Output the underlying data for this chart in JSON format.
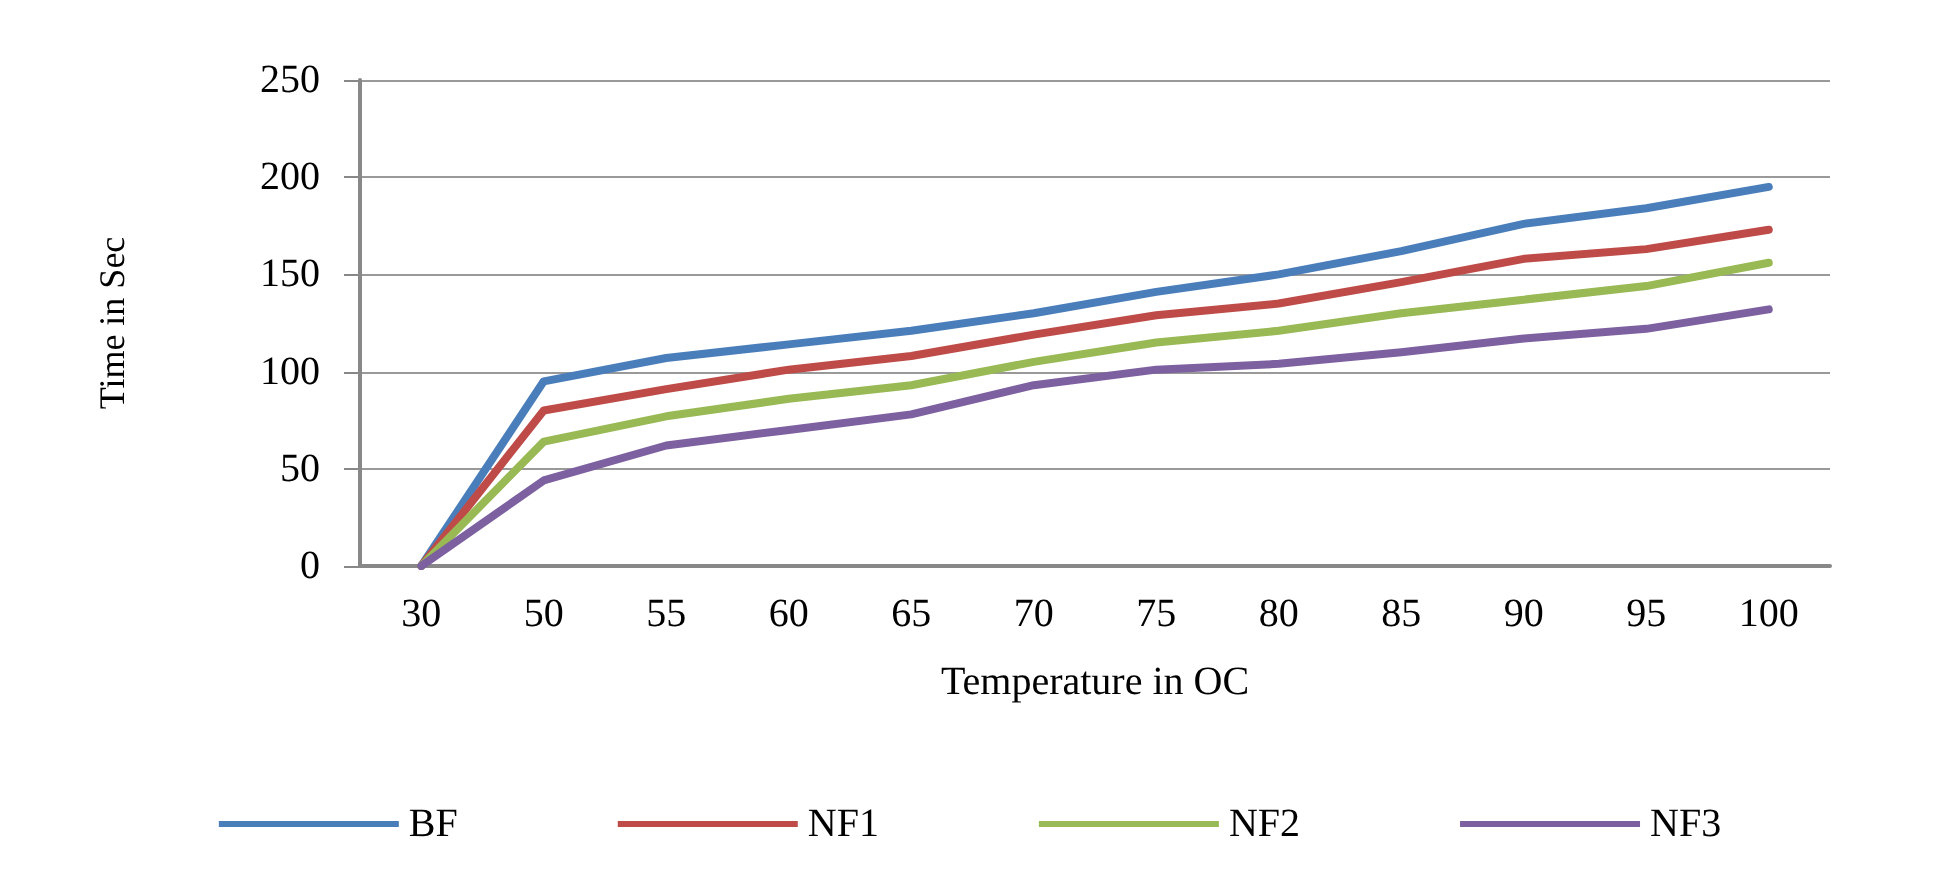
{
  "chart_data": {
    "type": "line",
    "xlabel": "Temperature in OC",
    "ylabel": "Time in Sec",
    "categories": [
      "30",
      "50",
      "55",
      "60",
      "65",
      "70",
      "75",
      "80",
      "85",
      "90",
      "95",
      "100"
    ],
    "series": [
      {
        "name": "BF",
        "color": "#4a7ebb",
        "values": [
          0,
          95,
          107,
          114,
          121,
          130,
          141,
          150,
          162,
          176,
          184,
          195
        ]
      },
      {
        "name": "NF1",
        "color": "#be4b48",
        "values": [
          0,
          80,
          91,
          101,
          108,
          119,
          129,
          135,
          146,
          158,
          163,
          173
        ]
      },
      {
        "name": "NF2",
        "color": "#98b954",
        "values": [
          0,
          64,
          77,
          86,
          93,
          105,
          115,
          121,
          130,
          137,
          144,
          156
        ]
      },
      {
        "name": "NF3",
        "color": "#7d60a0",
        "values": [
          0,
          44,
          62,
          70,
          78,
          93,
          101,
          104,
          110,
          117,
          122,
          132
        ]
      }
    ],
    "ylim": [
      0,
      250
    ],
    "yticks": [
      0,
      50,
      100,
      150,
      200,
      250
    ],
    "grid": "y",
    "legend": "bottom",
    "marker": "none",
    "line_style": "solid"
  }
}
